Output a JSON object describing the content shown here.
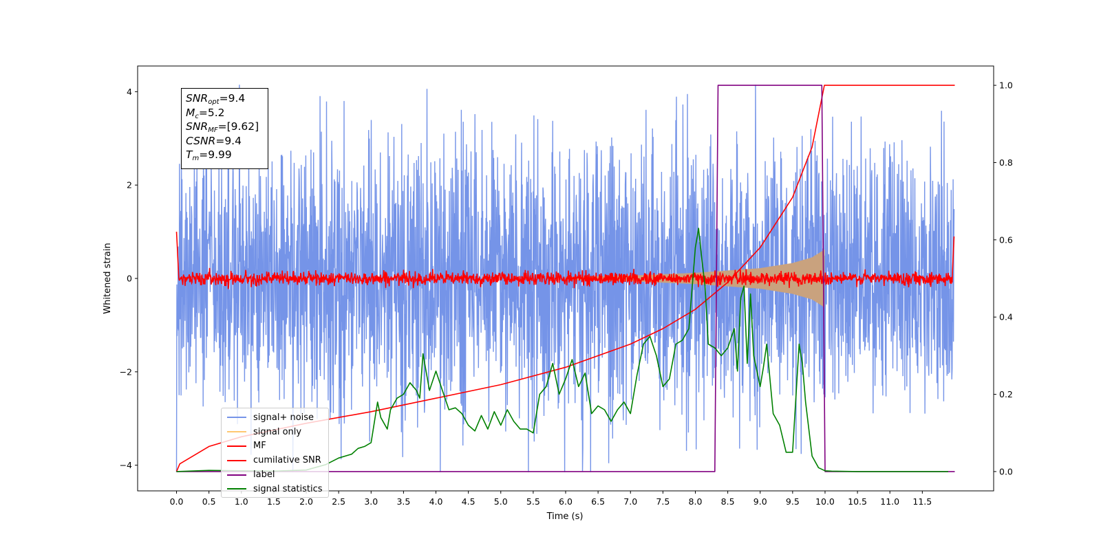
{
  "chart_data": {
    "type": "line",
    "xlabel": "Time (s)",
    "ylabel": "Whitened strain",
    "xlim": [
      -0.6,
      12.6
    ],
    "ylim": [
      -4.55,
      4.55
    ],
    "y2lim": [
      -0.05,
      1.05
    ],
    "xticks": [
      "0.0",
      "0.5",
      "1.0",
      "1.5",
      "2.0",
      "2.5",
      "3.0",
      "3.5",
      "4.0",
      "4.5",
      "5.0",
      "5.5",
      "6.0",
      "6.5",
      "7.0",
      "7.5",
      "8.0",
      "8.5",
      "9.0",
      "9.5",
      "10.0",
      "10.5",
      "11.0",
      "11.5"
    ],
    "yticks": [
      "4",
      "2",
      "0",
      "−2",
      "−4"
    ],
    "y2ticks": [
      "1.0",
      "0.8",
      "0.6",
      "0.4",
      "0.2",
      "0.0"
    ],
    "annotation": {
      "snr_opt_label": "SNR",
      "snr_opt_sub": "opt",
      "snr_opt_value": "=9.4",
      "mc_label": "M",
      "mc_sub": "c",
      "mc_value": "=5.2",
      "snr_mf_label": "SNR",
      "snr_mf_sub": "MF",
      "snr_mf_value": "=[9.62]",
      "csnr_label": "CSNR",
      "csnr_value": "=9.4",
      "tm_label": "T",
      "tm_sub": "m",
      "tm_value": "=9.99"
    },
    "legend_position": "lower-left",
    "series": [
      {
        "name": "signal+ noise",
        "color": "#7594e8",
        "axis": "left",
        "noise_amplitude": 2.35,
        "t_range": [
          0,
          11.99
        ]
      },
      {
        "name": "signal only",
        "color": "#ffc870",
        "axis": "left",
        "envelope": {
          "t": [
            6.0,
            7.0,
            8.0,
            9.0,
            9.5,
            9.8,
            9.95,
            9.99
          ],
          "amplitude": [
            0.03,
            0.06,
            0.12,
            0.22,
            0.33,
            0.45,
            0.58,
            0.62
          ]
        }
      },
      {
        "name": "MF",
        "color": "#ff0000",
        "axis": "left",
        "noise_amplitude": 0.2,
        "t_range": [
          0,
          11.99
        ]
      },
      {
        "name": "cumilative SNR",
        "color": "#ff0000",
        "axis": "right",
        "x": [
          0.0,
          0.05,
          0.5,
          1.0,
          2.0,
          3.0,
          4.0,
          5.0,
          6.0,
          7.0,
          7.5,
          8.0,
          8.5,
          9.0,
          9.5,
          9.8,
          9.99,
          12.0
        ],
        "y": [
          0.0,
          0.02,
          0.065,
          0.09,
          0.125,
          0.155,
          0.19,
          0.225,
          0.27,
          0.33,
          0.37,
          0.42,
          0.49,
          0.58,
          0.71,
          0.84,
          1.0,
          1.0
        ]
      },
      {
        "name": "label",
        "color": "#800080",
        "axis": "right",
        "x": [
          0.0,
          8.3,
          8.35,
          9.95,
          10.0,
          12.0
        ],
        "y": [
          0.0,
          0.0,
          1.0,
          1.0,
          0.0,
          0.0
        ]
      },
      {
        "name": "signal statistics",
        "color": "#008000",
        "axis": "right",
        "x": [
          0.0,
          0.5,
          1.0,
          1.5,
          2.0,
          2.3,
          2.5,
          2.7,
          2.8,
          2.9,
          3.0,
          3.1,
          3.15,
          3.25,
          3.3,
          3.4,
          3.5,
          3.6,
          3.7,
          3.75,
          3.8,
          3.9,
          4.0,
          4.1,
          4.2,
          4.3,
          4.4,
          4.5,
          4.6,
          4.7,
          4.8,
          4.9,
          5.0,
          5.1,
          5.2,
          5.3,
          5.4,
          5.5,
          5.6,
          5.7,
          5.8,
          5.9,
          6.0,
          6.1,
          6.2,
          6.3,
          6.4,
          6.5,
          6.6,
          6.7,
          6.8,
          6.9,
          7.0,
          7.1,
          7.2,
          7.3,
          7.4,
          7.5,
          7.6,
          7.7,
          7.8,
          7.9,
          8.0,
          8.05,
          8.1,
          8.15,
          8.2,
          8.3,
          8.4,
          8.5,
          8.6,
          8.65,
          8.7,
          8.75,
          8.8,
          8.85,
          8.9,
          9.0,
          9.05,
          9.1,
          9.2,
          9.3,
          9.4,
          9.5,
          9.6,
          9.65,
          9.7,
          9.8,
          9.9,
          10.0,
          10.1,
          10.5,
          11.0,
          11.9
        ],
        "y": [
          0.0,
          0.003,
          0.002,
          0.001,
          0.004,
          0.018,
          0.035,
          0.045,
          0.06,
          0.065,
          0.075,
          0.18,
          0.14,
          0.11,
          0.16,
          0.19,
          0.2,
          0.23,
          0.21,
          0.19,
          0.305,
          0.21,
          0.26,
          0.21,
          0.16,
          0.165,
          0.15,
          0.12,
          0.105,
          0.145,
          0.11,
          0.155,
          0.12,
          0.16,
          0.13,
          0.11,
          0.11,
          0.1,
          0.2,
          0.22,
          0.28,
          0.2,
          0.24,
          0.29,
          0.22,
          0.255,
          0.15,
          0.17,
          0.16,
          0.13,
          0.16,
          0.18,
          0.15,
          0.25,
          0.33,
          0.35,
          0.3,
          0.22,
          0.24,
          0.33,
          0.34,
          0.37,
          0.58,
          0.63,
          0.55,
          0.48,
          0.33,
          0.32,
          0.3,
          0.32,
          0.37,
          0.26,
          0.45,
          0.48,
          0.28,
          0.46,
          0.3,
          0.22,
          0.27,
          0.33,
          0.15,
          0.12,
          0.05,
          0.05,
          0.33,
          0.28,
          0.18,
          0.04,
          0.01,
          0.002,
          0.001,
          0.0,
          0.0,
          0.0
        ]
      }
    ]
  }
}
